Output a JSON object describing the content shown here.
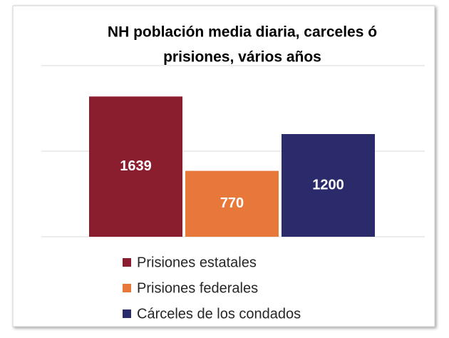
{
  "chart_data": {
    "type": "bar",
    "title": [
      "NH población media diaria, carceles ó",
      "prisiones, vários años"
    ],
    "series": [
      {
        "name": "Prisiones estatales",
        "color": "#8b1e2e",
        "values": [
          1639
        ]
      },
      {
        "name": "Prisiones federales",
        "color": "#e8773a",
        "values": [
          770
        ]
      },
      {
        "name": "Cárceles de los condados",
        "color": "#2b2b6b",
        "values": [
          1200
        ]
      }
    ],
    "ylim": [
      0,
      2000
    ],
    "yticks": [
      0,
      1000,
      2000
    ],
    "grid": true,
    "legend": "bottom"
  }
}
